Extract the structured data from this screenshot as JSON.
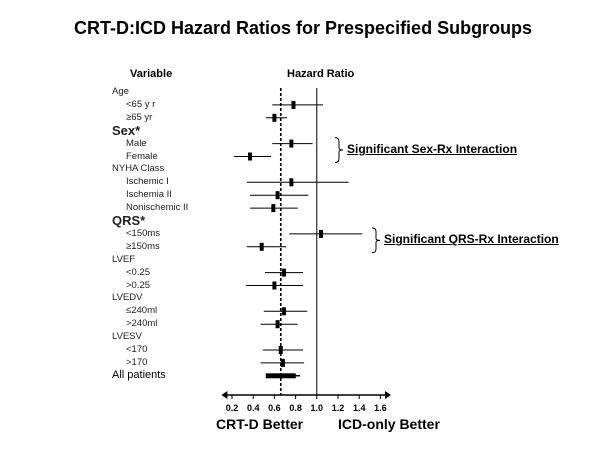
{
  "title": "CRT-D:ICD Hazard Ratios for Prespecified Subgroups",
  "headers": {
    "variable": "Variable",
    "hazard_ratio": "Hazard Ratio"
  },
  "chart_data": {
    "type": "forest",
    "xlim": [
      0.1,
      1.7
    ],
    "xticks": [
      "0.2",
      "0.4",
      "0.6",
      "0.8",
      "1.0",
      "1.2",
      "1.4",
      "1.6"
    ],
    "reference_line": 1.0,
    "overall_line": 0.66,
    "rows": [
      {
        "label": "Age",
        "kind": "group"
      },
      {
        "label": "<65 y r",
        "kind": "item",
        "hr": 0.78,
        "lo": 0.58,
        "hi": 1.06
      },
      {
        "label": "≥65 yr",
        "kind": "item",
        "hr": 0.6,
        "lo": 0.52,
        "hi": 0.72
      },
      {
        "label": "Sex*",
        "kind": "group-big"
      },
      {
        "label": "Male",
        "kind": "item",
        "hr": 0.76,
        "lo": 0.58,
        "hi": 0.96
      },
      {
        "label": "Female",
        "kind": "item",
        "hr": 0.37,
        "lo": 0.22,
        "hi": 0.57
      },
      {
        "label": "NYHA Class",
        "kind": "group"
      },
      {
        "label": "Ischemic I",
        "kind": "item",
        "hr": 0.76,
        "lo": 0.34,
        "hi": 1.3
      },
      {
        "label": "Ischemia II",
        "kind": "item",
        "hr": 0.63,
        "lo": 0.37,
        "hi": 0.92
      },
      {
        "label": "Nonischemic II",
        "kind": "item",
        "hr": 0.59,
        "lo": 0.37,
        "hi": 0.82
      },
      {
        "label": "QRS*",
        "kind": "group-big"
      },
      {
        "label": "<150ms",
        "kind": "item",
        "hr": 1.04,
        "lo": 0.74,
        "hi": 1.43
      },
      {
        "label": "≥150ms",
        "kind": "item",
        "hr": 0.48,
        "lo": 0.34,
        "hi": 0.71
      },
      {
        "label": "LVEF",
        "kind": "group"
      },
      {
        "label": "<0.25",
        "kind": "item",
        "hr": 0.69,
        "lo": 0.51,
        "hi": 0.87
      },
      {
        "label": ">0.25",
        "kind": "item",
        "hr": 0.6,
        "lo": 0.33,
        "hi": 0.87
      },
      {
        "label": "LVEDV",
        "kind": "group"
      },
      {
        "label": "≤240ml",
        "kind": "item",
        "hr": 0.69,
        "lo": 0.5,
        "hi": 0.91
      },
      {
        "label": ">240ml",
        "kind": "item",
        "hr": 0.63,
        "lo": 0.47,
        "hi": 0.82
      },
      {
        "label": "LVESV",
        "kind": "group"
      },
      {
        "label": "<170",
        "kind": "item",
        "hr": 0.66,
        "lo": 0.49,
        "hi": 0.87
      },
      {
        "label": ">170",
        "kind": "item",
        "hr": 0.68,
        "lo": 0.47,
        "hi": 0.88
      },
      {
        "label": "All patients",
        "kind": "overall",
        "hr": 0.66,
        "lo": 0.52,
        "hi": 0.84
      }
    ],
    "annotations": [
      {
        "text": "Significant Sex-Rx Interaction",
        "rows": [
          "Male",
          "Female"
        ]
      },
      {
        "text": "Significant QRS-Rx Interaction",
        "rows": [
          "<150ms",
          "≥150ms"
        ]
      }
    ],
    "footer_left": "CRT-D Better",
    "footer_right": "ICD-only Better"
  }
}
